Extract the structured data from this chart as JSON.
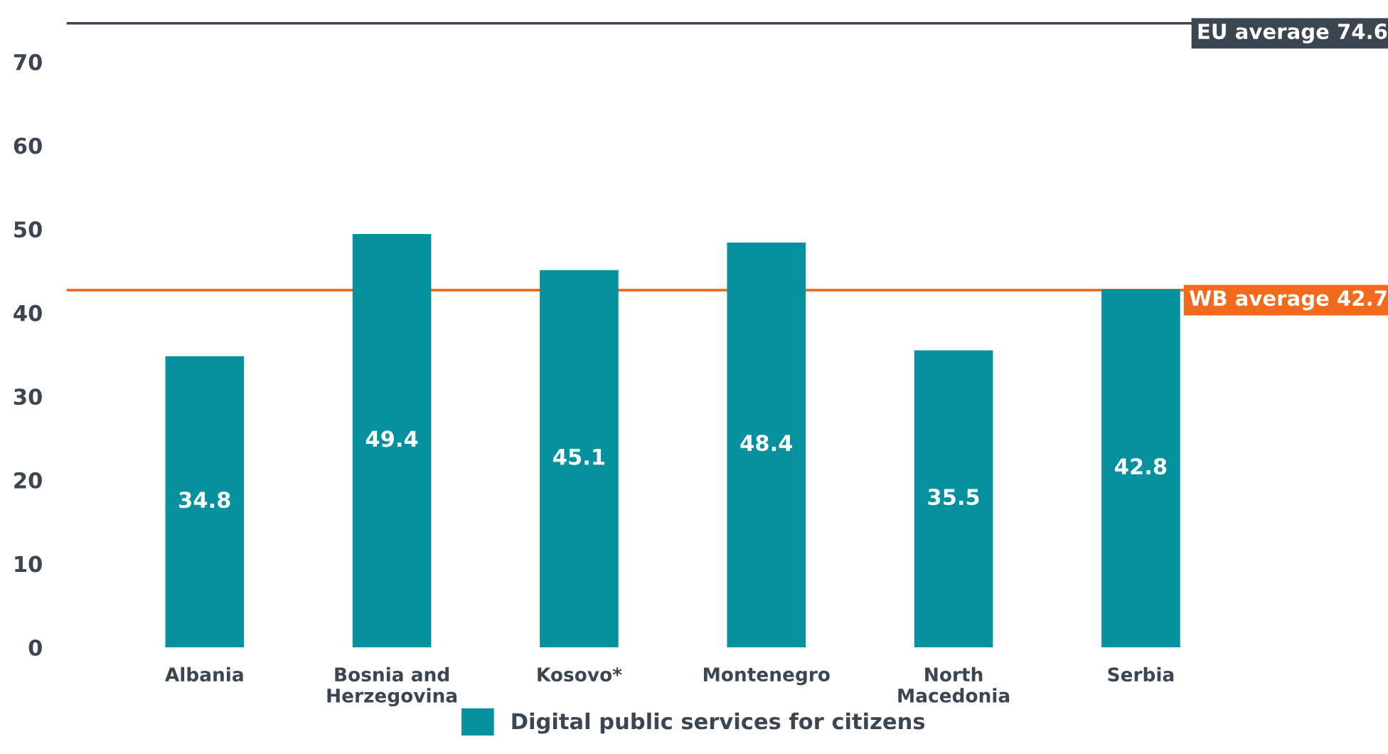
{
  "chart_data": {
    "type": "bar",
    "categories": [
      "Albania",
      "Bosnia and\nHerzegovina",
      "Kosovo*",
      "Montenegro",
      "North\nMacedonia",
      "Serbia"
    ],
    "series": [
      {
        "name": "Digital public services for citizens",
        "color": "#05919e",
        "values": [
          34.8,
          49.4,
          45.1,
          48.4,
          35.5,
          42.8
        ]
      }
    ],
    "data_labels": true,
    "ylim": [
      0,
      75
    ],
    "yticks": [
      0,
      10,
      20,
      30,
      40,
      50,
      60,
      70
    ],
    "ref_lines": [
      {
        "axis": "y",
        "value": 74.6,
        "label": "EU average 74.6",
        "color": "#3b4650"
      },
      {
        "axis": "y",
        "value": 42.7,
        "label": "WB average 42.7",
        "color": "#f26a1b"
      }
    ],
    "grid": false,
    "legend": "bottom"
  }
}
